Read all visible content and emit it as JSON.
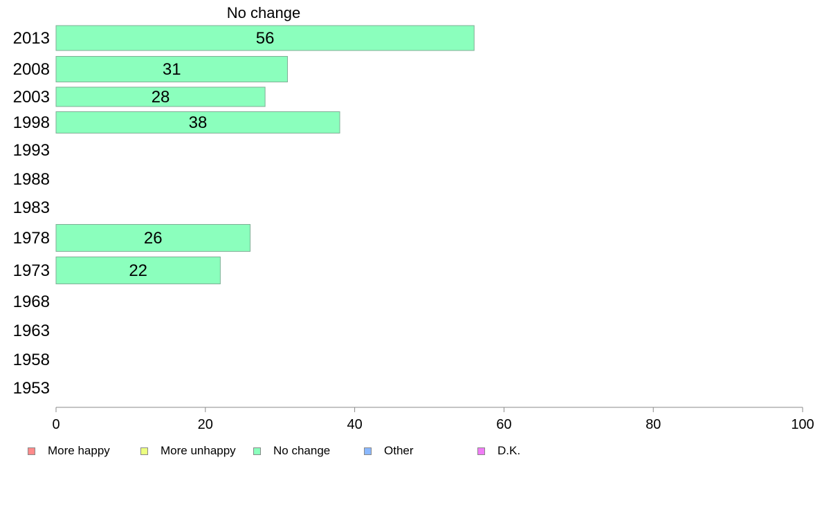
{
  "chart_data": {
    "type": "bar",
    "orientation": "horizontal",
    "title": "No change",
    "categories": [
      "2013",
      "2008",
      "2003",
      "1998",
      "1993",
      "1988",
      "1983",
      "1978",
      "1973",
      "1968",
      "1963",
      "1958",
      "1953"
    ],
    "series": [
      {
        "name": "No change",
        "values": [
          56,
          31,
          28,
          38,
          null,
          null,
          null,
          26,
          22,
          null,
          null,
          null,
          null
        ],
        "color": "#8bffbd"
      }
    ],
    "data_labels": [
      "56",
      "31",
      "28",
      "38",
      "",
      "",
      "",
      "26",
      "22",
      "",
      "",
      "",
      ""
    ],
    "xlim": [
      0,
      100
    ],
    "xticks": [
      "0",
      "20",
      "40",
      "60",
      "80",
      "100"
    ],
    "grid": false,
    "legend": {
      "position": "bottom",
      "items": [
        {
          "label": "More happy",
          "color": "#ff8a8a"
        },
        {
          "label": "More unhappy",
          "color": "#ecff80"
        },
        {
          "label": "No change",
          "color": "#8bffbd"
        },
        {
          "label": "Other",
          "color": "#8ab8ff"
        },
        {
          "label": "D.K.",
          "color": "#f07cf5"
        }
      ]
    }
  }
}
